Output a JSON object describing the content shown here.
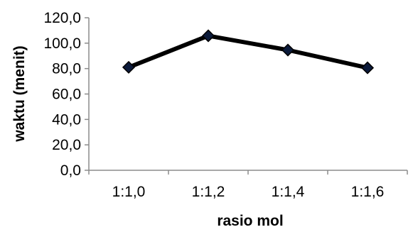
{
  "chart_data": {
    "type": "line",
    "title": "",
    "xlabel": "rasio mol",
    "ylabel": "waktu (menit)",
    "categories": [
      "1:1,0",
      "1:1,2",
      "1:1,4",
      "1:1,6"
    ],
    "series": [
      {
        "values": [
          81.0,
          105.8,
          94.6,
          80.6
        ]
      }
    ],
    "ylim": [
      0,
      120
    ],
    "yticks": [
      "0,0",
      "20,0",
      "40,0",
      "60,0",
      "80,0",
      "100,0",
      "120,0"
    ],
    "grid": false,
    "legend": "none",
    "line_color": "#000000",
    "marker_color": "#0b1a3a",
    "marker_shape": "diamond"
  }
}
